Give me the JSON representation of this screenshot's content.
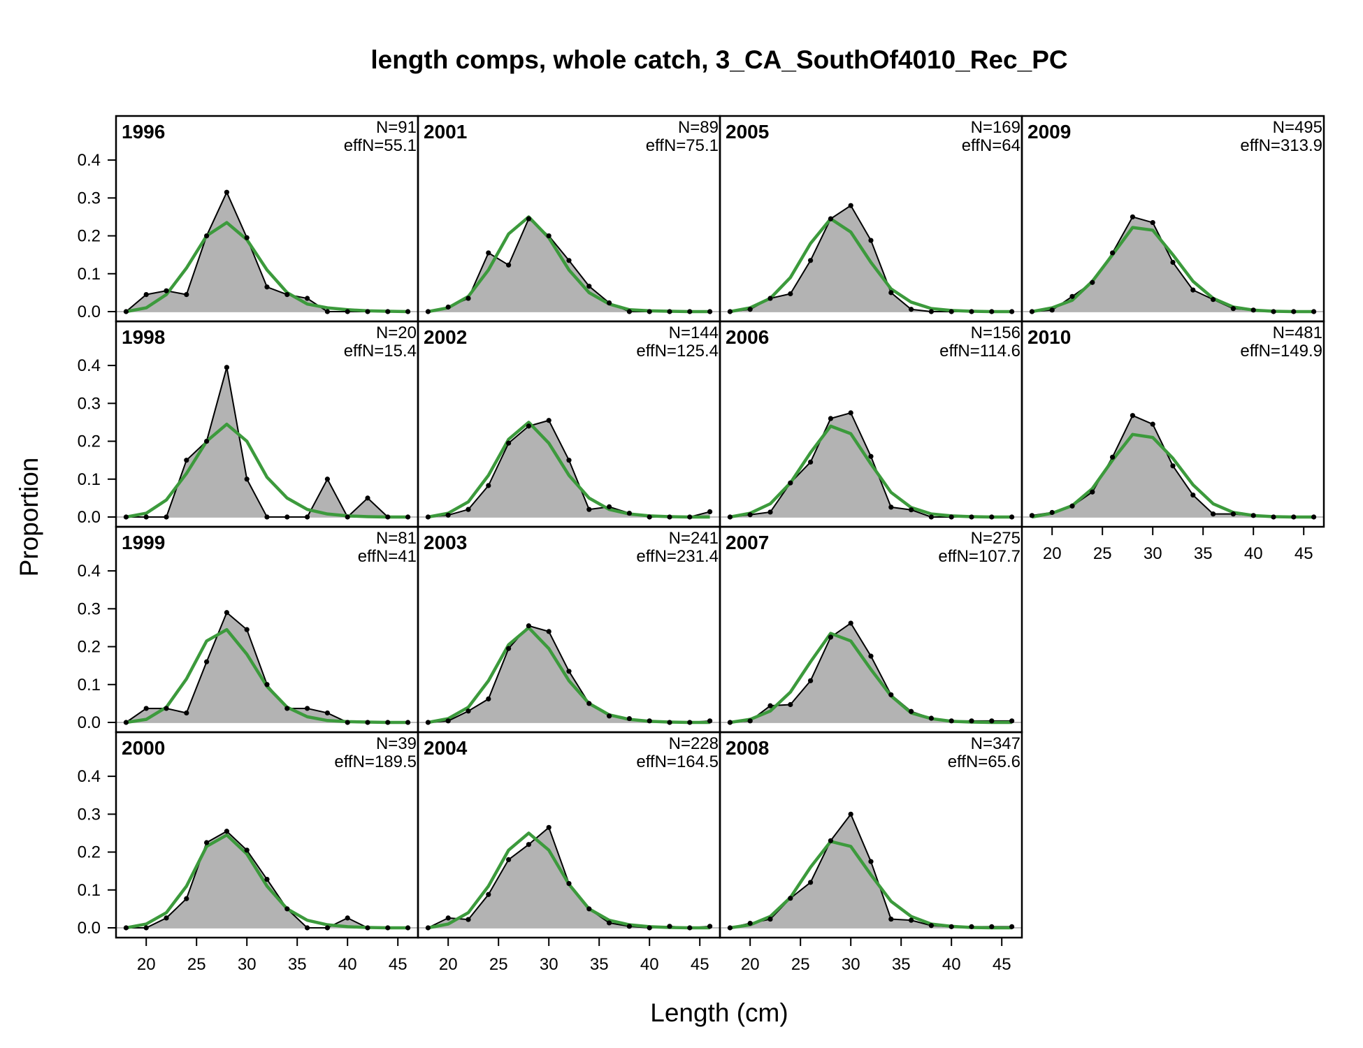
{
  "chart_data": {
    "type": "area",
    "title": "length comps, whole catch, 3_CA_SouthOf4010_Rec_PC",
    "xlabel": "Length (cm)",
    "ylabel": "Proportion",
    "xlim": [
      17,
      47
    ],
    "ylim": [
      0,
      0.45
    ],
    "x": [
      18,
      20,
      22,
      24,
      26,
      28,
      30,
      32,
      34,
      36,
      38,
      40,
      42,
      44,
      46
    ],
    "xticks": [
      20,
      25,
      30,
      35,
      40,
      45
    ],
    "yticks": [
      0.0,
      0.1,
      0.2,
      0.3,
      0.4
    ],
    "ytick_labels": [
      "0.0",
      "0.1",
      "0.2",
      "0.3",
      "0.4"
    ],
    "layout": "4 columns, panels filled column-wise",
    "colors": {
      "observed_fill": "#b3b3b3",
      "observed_line": "#000000",
      "expected_line": "#3c9a3c",
      "zero_line": "#bdbdbd"
    },
    "panels": [
      {
        "year": "1996",
        "N": "N=91",
        "effN": "effN=55.1",
        "col": 0,
        "row": 0,
        "observed": [
          0,
          0.045,
          0.055,
          0.045,
          0.2,
          0.315,
          0.195,
          0.065,
          0.045,
          0.035,
          0,
          0,
          0,
          0,
          0
        ],
        "expected": [
          0,
          0.01,
          0.045,
          0.115,
          0.2,
          0.235,
          0.19,
          0.11,
          0.05,
          0.02,
          0.01,
          0.005,
          0.002,
          0.001,
          0
        ]
      },
      {
        "year": "1998",
        "N": "N=20",
        "effN": "effN=15.4",
        "col": 0,
        "row": 1,
        "observed": [
          0,
          0,
          0,
          0.15,
          0.2,
          0.395,
          0.1,
          0,
          0,
          0,
          0.1,
          0,
          0.05,
          0,
          0
        ],
        "expected": [
          0,
          0.01,
          0.045,
          0.115,
          0.2,
          0.245,
          0.2,
          0.105,
          0.05,
          0.02,
          0.008,
          0.003,
          0.001,
          0,
          0
        ]
      },
      {
        "year": "1999",
        "N": "N=81",
        "effN": "effN=41",
        "col": 0,
        "row": 2,
        "observed": [
          0,
          0.037,
          0.037,
          0.025,
          0.16,
          0.29,
          0.245,
          0.1,
          0.037,
          0.037,
          0.025,
          0,
          0,
          0,
          0
        ],
        "expected": [
          0,
          0.008,
          0.04,
          0.115,
          0.215,
          0.245,
          0.18,
          0.095,
          0.04,
          0.015,
          0.005,
          0.002,
          0.001,
          0,
          0
        ]
      },
      {
        "year": "2000",
        "N": "N=39",
        "effN": "effN=189.5",
        "col": 0,
        "row": 3,
        "observed": [
          0,
          0,
          0.026,
          0.077,
          0.225,
          0.255,
          0.205,
          0.128,
          0.05,
          0,
          0,
          0.026,
          0,
          0,
          0
        ],
        "expected": [
          0,
          0.01,
          0.04,
          0.11,
          0.215,
          0.245,
          0.195,
          0.11,
          0.05,
          0.02,
          0.008,
          0.003,
          0.001,
          0,
          0
        ]
      },
      {
        "year": "2001",
        "N": "N=89",
        "effN": "effN=75.1",
        "col": 1,
        "row": 0,
        "observed": [
          0,
          0.012,
          0.035,
          0.155,
          0.123,
          0.245,
          0.2,
          0.135,
          0.067,
          0.023,
          0,
          0,
          0,
          0,
          0
        ],
        "expected": [
          0,
          0.01,
          0.04,
          0.11,
          0.205,
          0.25,
          0.195,
          0.11,
          0.05,
          0.02,
          0.005,
          0.002,
          0.001,
          0,
          0
        ]
      },
      {
        "year": "2002",
        "N": "N=144",
        "effN": "effN=125.4",
        "col": 1,
        "row": 1,
        "observed": [
          0,
          0.005,
          0.02,
          0.083,
          0.195,
          0.24,
          0.255,
          0.15,
          0.02,
          0.027,
          0.01,
          0,
          0,
          0,
          0.014
        ],
        "expected": [
          0,
          0.01,
          0.04,
          0.11,
          0.205,
          0.25,
          0.195,
          0.11,
          0.05,
          0.02,
          0.008,
          0.003,
          0.001,
          0,
          0
        ]
      },
      {
        "year": "2003",
        "N": "N=241",
        "effN": "effN=231.4",
        "col": 1,
        "row": 2,
        "observed": [
          0,
          0.004,
          0.03,
          0.062,
          0.195,
          0.255,
          0.24,
          0.135,
          0.05,
          0.017,
          0.01,
          0.004,
          0,
          0,
          0.004
        ],
        "expected": [
          0,
          0.01,
          0.04,
          0.11,
          0.205,
          0.25,
          0.195,
          0.11,
          0.05,
          0.02,
          0.008,
          0.003,
          0.001,
          0,
          0
        ]
      },
      {
        "year": "2004",
        "N": "N=228",
        "effN": "effN=164.5",
        "col": 1,
        "row": 3,
        "observed": [
          0,
          0.026,
          0.022,
          0.088,
          0.18,
          0.22,
          0.265,
          0.117,
          0.05,
          0.013,
          0.004,
          0,
          0.004,
          0,
          0.004
        ],
        "expected": [
          0,
          0.01,
          0.04,
          0.11,
          0.205,
          0.25,
          0.205,
          0.115,
          0.05,
          0.02,
          0.008,
          0.003,
          0.001,
          0,
          0
        ]
      },
      {
        "year": "2005",
        "N": "N=169",
        "effN": "effN=64",
        "col": 2,
        "row": 0,
        "observed": [
          0,
          0.006,
          0.035,
          0.047,
          0.135,
          0.245,
          0.28,
          0.188,
          0.05,
          0.006,
          0,
          0,
          0,
          0,
          0
        ],
        "expected": [
          0,
          0.01,
          0.035,
          0.09,
          0.18,
          0.245,
          0.21,
          0.13,
          0.06,
          0.025,
          0.008,
          0.003,
          0.001,
          0,
          0
        ]
      },
      {
        "year": "2006",
        "N": "N=156",
        "effN": "effN=114.6",
        "col": 2,
        "row": 1,
        "observed": [
          0,
          0.006,
          0.013,
          0.09,
          0.145,
          0.26,
          0.275,
          0.16,
          0.026,
          0.019,
          0,
          0,
          0,
          0,
          0
        ],
        "expected": [
          0,
          0.01,
          0.035,
          0.09,
          0.17,
          0.24,
          0.22,
          0.14,
          0.065,
          0.025,
          0.008,
          0.003,
          0.001,
          0,
          0
        ]
      },
      {
        "year": "2007",
        "N": "N=275",
        "effN": "effN=107.7",
        "col": 2,
        "row": 2,
        "observed": [
          0,
          0.004,
          0.044,
          0.047,
          0.11,
          0.225,
          0.262,
          0.175,
          0.073,
          0.029,
          0.011,
          0.004,
          0.004,
          0.004,
          0.004
        ],
        "expected": [
          0,
          0.008,
          0.03,
          0.08,
          0.16,
          0.235,
          0.215,
          0.14,
          0.07,
          0.025,
          0.01,
          0.003,
          0.001,
          0,
          0
        ]
      },
      {
        "year": "2008",
        "N": "N=347",
        "effN": "effN=65.6",
        "col": 2,
        "row": 3,
        "observed": [
          0,
          0.012,
          0.023,
          0.078,
          0.12,
          0.23,
          0.3,
          0.175,
          0.023,
          0.02,
          0.006,
          0.003,
          0.003,
          0.003,
          0.003
        ],
        "expected": [
          0,
          0.008,
          0.03,
          0.08,
          0.16,
          0.228,
          0.215,
          0.14,
          0.07,
          0.03,
          0.01,
          0.004,
          0.001,
          0,
          0
        ]
      },
      {
        "year": "2009",
        "N": "N=495",
        "effN": "effN=313.9",
        "col": 3,
        "row": 0,
        "observed": [
          0,
          0.004,
          0.04,
          0.077,
          0.155,
          0.25,
          0.235,
          0.13,
          0.057,
          0.032,
          0.008,
          0.004,
          0,
          0,
          0
        ],
        "expected": [
          0,
          0.01,
          0.03,
          0.08,
          0.15,
          0.222,
          0.215,
          0.15,
          0.08,
          0.035,
          0.012,
          0.004,
          0.001,
          0,
          0
        ]
      },
      {
        "year": "2010",
        "N": "N=481",
        "effN": "effN=149.9",
        "col": 3,
        "row": 1,
        "observed": [
          0.004,
          0.012,
          0.029,
          0.066,
          0.158,
          0.268,
          0.245,
          0.135,
          0.058,
          0.008,
          0.008,
          0.004,
          0,
          0,
          0
        ],
        "expected": [
          0,
          0.01,
          0.03,
          0.075,
          0.15,
          0.218,
          0.21,
          0.155,
          0.085,
          0.035,
          0.012,
          0.004,
          0.001,
          0,
          0
        ]
      }
    ]
  }
}
